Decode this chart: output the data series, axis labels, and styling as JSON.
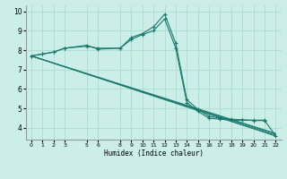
{
  "xlabel": "Humidex (Indice chaleur)",
  "bg_color": "#cceee8",
  "grid_color": "#aaddcc",
  "line_color": "#1a7a6e",
  "xlim": [
    -0.5,
    22.5
  ],
  "ylim": [
    3.4,
    10.3
  ],
  "xticks": [
    0,
    1,
    2,
    3,
    5,
    6,
    8,
    9,
    10,
    11,
    12,
    13,
    14,
    15,
    16,
    17,
    18,
    19,
    20,
    21,
    22
  ],
  "yticks": [
    4,
    5,
    6,
    7,
    8,
    9,
    10
  ],
  "line1_x": [
    0,
    1,
    2,
    3,
    5,
    6,
    8,
    9,
    10,
    11,
    12,
    13,
    14,
    15,
    16,
    17,
    18,
    19,
    20,
    21
  ],
  "line1_y": [
    7.7,
    7.8,
    7.9,
    8.1,
    8.2,
    8.1,
    8.1,
    8.55,
    8.8,
    9.0,
    9.6,
    8.1,
    5.3,
    4.85,
    4.5,
    4.45,
    4.4,
    4.4,
    4.4,
    4.4
  ],
  "line2_x": [
    0,
    1,
    2,
    3,
    5,
    6,
    8,
    9,
    10,
    11,
    12,
    13,
    14,
    15,
    16,
    17,
    18,
    19,
    20,
    21,
    22
  ],
  "line2_y": [
    7.7,
    7.8,
    7.9,
    8.1,
    8.25,
    8.05,
    8.1,
    8.65,
    8.85,
    9.2,
    9.85,
    8.35,
    5.45,
    4.95,
    4.6,
    4.5,
    4.45,
    4.42,
    4.38,
    4.38,
    3.6
  ],
  "straight_lines": [
    {
      "x0": 0,
      "y0": 7.7,
      "x1": 22,
      "y1": 3.58
    },
    {
      "x0": 0,
      "y0": 7.7,
      "x1": 22,
      "y1": 3.62
    },
    {
      "x0": 0,
      "y0": 7.7,
      "x1": 22,
      "y1": 3.68
    },
    {
      "x0": 0,
      "y0": 7.7,
      "x1": 22,
      "y1": 3.72
    }
  ]
}
